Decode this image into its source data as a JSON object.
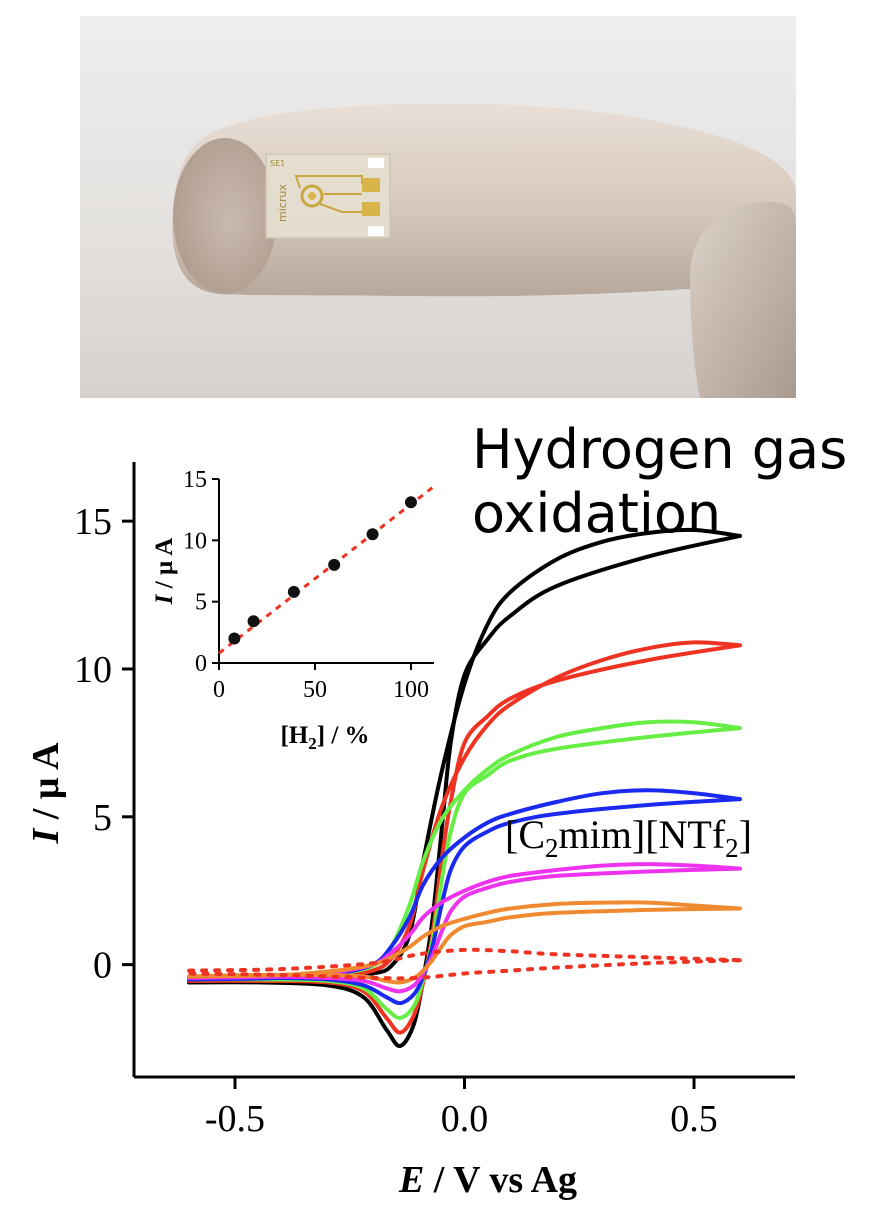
{
  "headline": {
    "line1": "Hydrogen gas",
    "line2": "oxidation"
  },
  "photo": {
    "chip_label_1": "SE1",
    "chip_label_2": "micrux"
  },
  "chart_data": [
    {
      "type": "line",
      "title": "",
      "xlabel_italic": "E",
      "xlabel_rest": " / V vs Ag",
      "ylabel_italic": "I",
      "ylabel_rest": " / µ A",
      "xlim": [
        -0.72,
        0.72
      ],
      "ylim": [
        -3.8,
        17.0
      ],
      "xticks": [
        -0.5,
        0.0,
        0.5
      ],
      "xtick_labels": [
        "-0.5",
        "0.0",
        "0.5"
      ],
      "yticks": [
        0,
        5,
        10,
        15
      ],
      "ytick_labels": [
        "0",
        "5",
        "10",
        "15"
      ],
      "annotation": {
        "prefix": "[C",
        "sub1": "2",
        "middle": "mim][NTf",
        "sub2": "2",
        "suffix": "]"
      },
      "series": [
        {
          "color": "#000000",
          "dashed": false,
          "forward": [
            [
              -0.6,
              -0.6
            ],
            [
              -0.4,
              -0.55
            ],
            [
              -0.28,
              -0.45
            ],
            [
              -0.2,
              -0.3
            ],
            [
              -0.16,
              -0.05
            ],
            [
              -0.12,
              1.0
            ],
            [
              -0.09,
              3.5
            ],
            [
              -0.05,
              6.5
            ],
            [
              0.0,
              9.5
            ],
            [
              0.05,
              11.5
            ],
            [
              0.1,
              12.6
            ],
            [
              0.2,
              13.7
            ],
            [
              0.3,
              14.3
            ],
            [
              0.4,
              14.6
            ],
            [
              0.5,
              14.7
            ],
            [
              0.6,
              14.5
            ]
          ],
          "reverse": [
            [
              0.6,
              14.5
            ],
            [
              0.4,
              13.8
            ],
            [
              0.2,
              12.8
            ],
            [
              0.1,
              11.8
            ],
            [
              0.05,
              11.0
            ],
            [
              0.0,
              9.8
            ],
            [
              -0.03,
              7.5
            ],
            [
              -0.05,
              4.5
            ],
            [
              -0.07,
              1.5
            ],
            [
              -0.09,
              -0.5
            ],
            [
              -0.11,
              -2.0
            ],
            [
              -0.14,
              -2.75
            ],
            [
              -0.17,
              -2.2
            ],
            [
              -0.22,
              -1.1
            ],
            [
              -0.3,
              -0.7
            ],
            [
              -0.45,
              -0.6
            ],
            [
              -0.6,
              -0.6
            ]
          ]
        },
        {
          "color": "#ee3322",
          "dashed": false,
          "forward": [
            [
              -0.6,
              -0.55
            ],
            [
              -0.4,
              -0.5
            ],
            [
              -0.28,
              -0.4
            ],
            [
              -0.2,
              -0.2
            ],
            [
              -0.16,
              0.2
            ],
            [
              -0.12,
              1.3
            ],
            [
              -0.09,
              3.2
            ],
            [
              -0.05,
              5.3
            ],
            [
              0.0,
              7.0
            ],
            [
              0.05,
              8.1
            ],
            [
              0.1,
              8.8
            ],
            [
              0.2,
              9.7
            ],
            [
              0.3,
              10.3
            ],
            [
              0.4,
              10.7
            ],
            [
              0.5,
              10.9
            ],
            [
              0.6,
              10.8
            ]
          ],
          "reverse": [
            [
              0.6,
              10.8
            ],
            [
              0.4,
              10.3
            ],
            [
              0.2,
              9.6
            ],
            [
              0.1,
              9.0
            ],
            [
              0.05,
              8.4
            ],
            [
              0.0,
              7.5
            ],
            [
              -0.03,
              5.5
            ],
            [
              -0.05,
              3.5
            ],
            [
              -0.07,
              1.0
            ],
            [
              -0.09,
              -0.6
            ],
            [
              -0.11,
              -1.7
            ],
            [
              -0.14,
              -2.3
            ],
            [
              -0.17,
              -1.8
            ],
            [
              -0.22,
              -0.9
            ],
            [
              -0.3,
              -0.6
            ],
            [
              -0.45,
              -0.55
            ],
            [
              -0.6,
              -0.55
            ]
          ]
        },
        {
          "color": "#66ee44",
          "dashed": false,
          "forward": [
            [
              -0.6,
              -0.5
            ],
            [
              -0.4,
              -0.45
            ],
            [
              -0.28,
              -0.3
            ],
            [
              -0.2,
              -0.05
            ],
            [
              -0.16,
              0.6
            ],
            [
              -0.12,
              2.0
            ],
            [
              -0.09,
              3.5
            ],
            [
              -0.05,
              4.9
            ],
            [
              0.0,
              5.9
            ],
            [
              0.05,
              6.6
            ],
            [
              0.1,
              7.1
            ],
            [
              0.2,
              7.7
            ],
            [
              0.3,
              8.0
            ],
            [
              0.4,
              8.2
            ],
            [
              0.5,
              8.2
            ],
            [
              0.6,
              8.0
            ]
          ],
          "reverse": [
            [
              0.6,
              8.0
            ],
            [
              0.4,
              7.7
            ],
            [
              0.2,
              7.3
            ],
            [
              0.1,
              6.9
            ],
            [
              0.05,
              6.4
            ],
            [
              0.0,
              5.8
            ],
            [
              -0.03,
              4.5
            ],
            [
              -0.05,
              2.8
            ],
            [
              -0.07,
              0.8
            ],
            [
              -0.09,
              -0.5
            ],
            [
              -0.11,
              -1.4
            ],
            [
              -0.14,
              -1.8
            ],
            [
              -0.17,
              -1.5
            ],
            [
              -0.22,
              -0.8
            ],
            [
              -0.3,
              -0.55
            ],
            [
              -0.45,
              -0.5
            ],
            [
              -0.6,
              -0.5
            ]
          ]
        },
        {
          "color": "#1a2aee",
          "dashed": false,
          "forward": [
            [
              -0.6,
              -0.5
            ],
            [
              -0.4,
              -0.45
            ],
            [
              -0.28,
              -0.3
            ],
            [
              -0.2,
              0.0
            ],
            [
              -0.16,
              0.6
            ],
            [
              -0.12,
              1.6
            ],
            [
              -0.09,
              2.7
            ],
            [
              -0.05,
              3.6
            ],
            [
              0.0,
              4.3
            ],
            [
              0.05,
              4.8
            ],
            [
              0.1,
              5.1
            ],
            [
              0.2,
              5.5
            ],
            [
              0.3,
              5.8
            ],
            [
              0.4,
              5.9
            ],
            [
              0.5,
              5.8
            ],
            [
              0.6,
              5.6
            ]
          ],
          "reverse": [
            [
              0.6,
              5.6
            ],
            [
              0.4,
              5.4
            ],
            [
              0.2,
              5.1
            ],
            [
              0.1,
              4.8
            ],
            [
              0.05,
              4.5
            ],
            [
              0.0,
              4.0
            ],
            [
              -0.03,
              3.2
            ],
            [
              -0.05,
              2.0
            ],
            [
              -0.07,
              0.6
            ],
            [
              -0.09,
              -0.4
            ],
            [
              -0.11,
              -1.0
            ],
            [
              -0.14,
              -1.3
            ],
            [
              -0.17,
              -1.1
            ],
            [
              -0.22,
              -0.7
            ],
            [
              -0.3,
              -0.5
            ],
            [
              -0.45,
              -0.45
            ],
            [
              -0.6,
              -0.5
            ]
          ]
        },
        {
          "color": "#ee33ee",
          "dashed": false,
          "forward": [
            [
              -0.6,
              -0.45
            ],
            [
              -0.4,
              -0.4
            ],
            [
              -0.28,
              -0.25
            ],
            [
              -0.2,
              0.0
            ],
            [
              -0.16,
              0.4
            ],
            [
              -0.12,
              1.0
            ],
            [
              -0.09,
              1.6
            ],
            [
              -0.05,
              2.1
            ],
            [
              0.0,
              2.5
            ],
            [
              0.05,
              2.8
            ],
            [
              0.1,
              3.0
            ],
            [
              0.2,
              3.2
            ],
            [
              0.3,
              3.35
            ],
            [
              0.4,
              3.4
            ],
            [
              0.5,
              3.35
            ],
            [
              0.6,
              3.25
            ]
          ],
          "reverse": [
            [
              0.6,
              3.25
            ],
            [
              0.4,
              3.15
            ],
            [
              0.2,
              3.0
            ],
            [
              0.1,
              2.8
            ],
            [
              0.05,
              2.6
            ],
            [
              0.0,
              2.3
            ],
            [
              -0.03,
              1.8
            ],
            [
              -0.05,
              1.1
            ],
            [
              -0.07,
              0.3
            ],
            [
              -0.09,
              -0.3
            ],
            [
              -0.11,
              -0.7
            ],
            [
              -0.14,
              -0.9
            ],
            [
              -0.17,
              -0.8
            ],
            [
              -0.22,
              -0.55
            ],
            [
              -0.3,
              -0.45
            ],
            [
              -0.45,
              -0.4
            ],
            [
              -0.6,
              -0.45
            ]
          ]
        },
        {
          "color": "#f08a30",
          "dashed": false,
          "forward": [
            [
              -0.6,
              -0.4
            ],
            [
              -0.4,
              -0.35
            ],
            [
              -0.28,
              -0.2
            ],
            [
              -0.2,
              0.0
            ],
            [
              -0.16,
              0.25
            ],
            [
              -0.12,
              0.6
            ],
            [
              -0.09,
              0.95
            ],
            [
              -0.05,
              1.3
            ],
            [
              0.0,
              1.55
            ],
            [
              0.05,
              1.75
            ],
            [
              0.1,
              1.9
            ],
            [
              0.2,
              2.05
            ],
            [
              0.3,
              2.1
            ],
            [
              0.4,
              2.1
            ],
            [
              0.5,
              2.0
            ],
            [
              0.6,
              1.9
            ]
          ],
          "reverse": [
            [
              0.6,
              1.9
            ],
            [
              0.4,
              1.85
            ],
            [
              0.2,
              1.75
            ],
            [
              0.1,
              1.6
            ],
            [
              0.05,
              1.45
            ],
            [
              0.0,
              1.3
            ],
            [
              -0.03,
              1.0
            ],
            [
              -0.05,
              0.6
            ],
            [
              -0.07,
              0.15
            ],
            [
              -0.09,
              -0.2
            ],
            [
              -0.11,
              -0.45
            ],
            [
              -0.14,
              -0.6
            ],
            [
              -0.17,
              -0.55
            ],
            [
              -0.22,
              -0.4
            ],
            [
              -0.3,
              -0.35
            ],
            [
              -0.45,
              -0.35
            ],
            [
              -0.6,
              -0.4
            ]
          ]
        },
        {
          "color": "#ee3322",
          "dashed": true,
          "forward": [
            [
              -0.6,
              -0.2
            ],
            [
              -0.4,
              -0.15
            ],
            [
              -0.2,
              0.05
            ],
            [
              -0.1,
              0.35
            ],
            [
              0.0,
              0.5
            ],
            [
              0.1,
              0.45
            ],
            [
              0.2,
              0.35
            ],
            [
              0.4,
              0.25
            ],
            [
              0.6,
              0.15
            ]
          ],
          "reverse": [
            [
              0.6,
              0.15
            ],
            [
              0.4,
              0.05
            ],
            [
              0.2,
              -0.1
            ],
            [
              0.1,
              -0.2
            ],
            [
              0.0,
              -0.3
            ],
            [
              -0.1,
              -0.45
            ],
            [
              -0.2,
              -0.45
            ],
            [
              -0.4,
              -0.35
            ],
            [
              -0.6,
              -0.3
            ]
          ]
        }
      ]
    },
    {
      "type": "scatter",
      "title": "",
      "xlabel": "[H2] / %",
      "xlabel_prefix": "[H",
      "xlabel_sub": "2",
      "xlabel_suffix": "] / %",
      "ylabel_italic": "I",
      "ylabel_rest": " / µ A",
      "xlim": [
        0,
        112
      ],
      "ylim": [
        0,
        15
      ],
      "xticks": [
        0,
        50,
        100
      ],
      "xtick_labels": [
        "0",
        "50",
        "100"
      ],
      "yticks": [
        0,
        5,
        10,
        15
      ],
      "ytick_labels": [
        "0",
        "5",
        "10",
        "15"
      ],
      "points": [
        {
          "x": 8,
          "y": 2.0
        },
        {
          "x": 18,
          "y": 3.4
        },
        {
          "x": 39,
          "y": 5.8
        },
        {
          "x": 60,
          "y": 8.0
        },
        {
          "x": 80,
          "y": 10.5
        },
        {
          "x": 100,
          "y": 13.1
        }
      ],
      "fit_line": {
        "x": [
          0,
          112
        ],
        "y": [
          0.8,
          14.4
        ],
        "color": "#ee3322",
        "style": "dashed"
      }
    }
  ]
}
